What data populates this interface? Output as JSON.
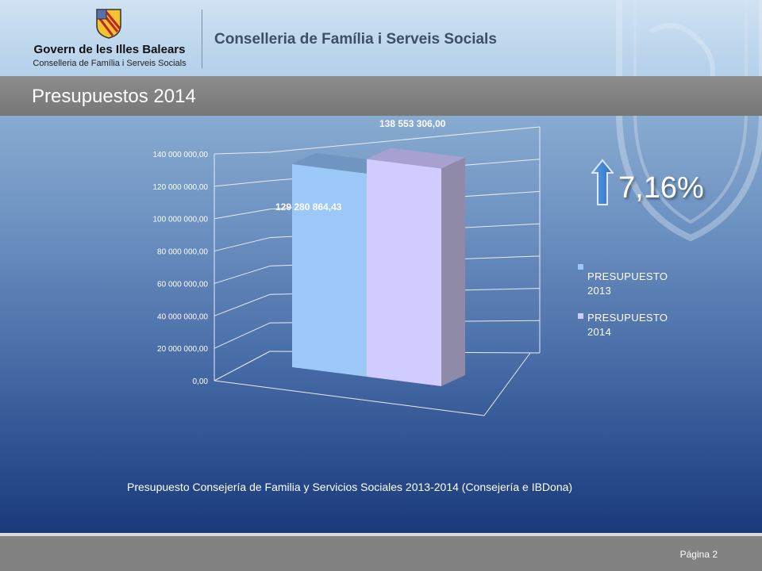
{
  "header": {
    "govern_name": "Govern de les Illes Balears",
    "conselleria_small": "Conselleria de Família i Serveis Socials",
    "title": "Conselleria de Família i Serveis Socials",
    "crest_icon": "coat-of-arms-icon"
  },
  "slide": {
    "title": "Presupuestos 2014",
    "caption": "Presupuesto Consejería de Familia y Servicios Sociales 2013-2014 (Consejería e IBDona)",
    "page_label": "Página 2",
    "increase_percent": "7,16%",
    "increase_icon": "up-arrow-icon"
  },
  "chart_data": {
    "type": "bar",
    "categories": [
      "PRESUPUESTO 2013",
      "PRESUPUESTO 2014"
    ],
    "values": [
      129280864.43,
      138553306.0
    ],
    "data_labels": [
      "129 280 864,43",
      "138 553 306,00"
    ],
    "ylim": [
      0,
      140000000
    ],
    "y_ticks": [
      {
        "value": 0,
        "label": "0,00"
      },
      {
        "value": 20000000,
        "label": "20 000 000,00"
      },
      {
        "value": 40000000,
        "label": "40 000 000,00"
      },
      {
        "value": 60000000,
        "label": "60 000 000,00"
      },
      {
        "value": 80000000,
        "label": "80 000 000,00"
      },
      {
        "value": 100000000,
        "label": "100 000 000,00"
      },
      {
        "value": 120000000,
        "label": "120 000 000,00"
      },
      {
        "value": 140000000,
        "label": "140 000 000,00"
      }
    ],
    "grid": true,
    "legend_position": "right",
    "legend": [
      {
        "name_line1": "PRESUPUESTO",
        "name_line2": "2013",
        "color": "#9cc8f8"
      },
      {
        "name_line1": "PRESUPUESTO",
        "name_line2": "2014",
        "color": "#d1ccff"
      }
    ],
    "colors": [
      "#9cc8f8",
      "#d1ccff"
    ]
  }
}
